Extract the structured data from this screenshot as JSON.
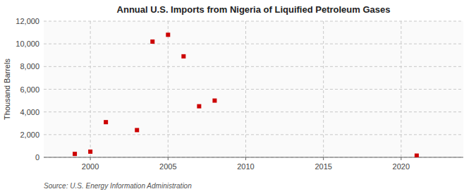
{
  "chart_data": {
    "type": "scatter",
    "title": "Annual U.S. Imports from Nigeria of Liquified Petroleum Gases",
    "ylabel": "Thousand Barrels",
    "source": "Source: U.S. Energy Information Administration",
    "x": [
      1999,
      2000,
      2001,
      2003,
      2004,
      2005,
      2006,
      2007,
      2008,
      2021
    ],
    "values": [
      300,
      500,
      3100,
      2400,
      10200,
      10800,
      8900,
      4500,
      5000,
      150
    ],
    "color": "#cc0000",
    "marker": "square",
    "xlim": [
      1997,
      2024
    ],
    "ylim": [
      0,
      12000
    ],
    "xticks": [
      2000,
      2005,
      2010,
      2015,
      2020
    ],
    "yticks": [
      0,
      {
        "value": 2000,
        "label": "2,000"
      },
      {
        "value": 4000,
        "label": "4,000"
      },
      {
        "value": 6000,
        "label": "6,000"
      },
      {
        "value": 8000,
        "label": "8,000"
      },
      {
        "value": 10000,
        "label": "10,000"
      },
      {
        "value": 12000,
        "label": "12,000"
      }
    ],
    "grid": true
  }
}
